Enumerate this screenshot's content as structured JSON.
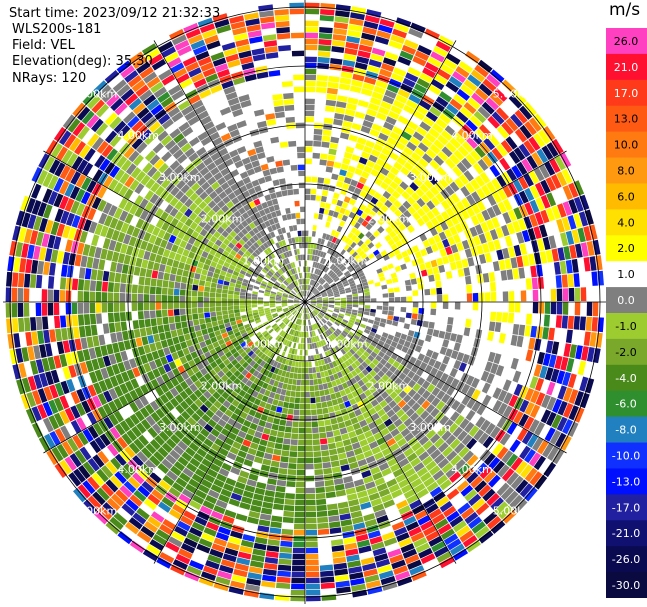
{
  "header": {
    "start_time": "Start time: 2023/09/12 21:32:33",
    "instrument": "WLS200s-181",
    "field": "Field: VEL",
    "elevation": "Elevation(deg): 35.30",
    "nrays": "NRays: 120"
  },
  "colorbar": {
    "unit": "m/s",
    "bins": [
      {
        "label": "26.0",
        "color": "#ff40c0"
      },
      {
        "label": "21.0",
        "color": "#ff1030"
      },
      {
        "label": "17.0",
        "color": "#ff3a1a"
      },
      {
        "label": "13.0",
        "color": "#ff5a14"
      },
      {
        "label": "10.0",
        "color": "#ff7a10"
      },
      {
        "label": "8.0",
        "color": "#ff9a10"
      },
      {
        "label": "6.0",
        "color": "#ffbb00"
      },
      {
        "label": "4.0",
        "color": "#ffe000"
      },
      {
        "label": "2.0",
        "color": "#ffff00"
      },
      {
        "label": "1.0",
        "color": "#ffffff"
      },
      {
        "label": "0.0",
        "color": "#7f7f7f"
      },
      {
        "label": "-1.0",
        "color": "#9ccc30"
      },
      {
        "label": "-2.0",
        "color": "#7aa82a"
      },
      {
        "label": "-4.0",
        "color": "#4a8a1a"
      },
      {
        "label": "-6.0",
        "color": "#2f8f2f"
      },
      {
        "label": "-8.0",
        "color": "#2080c0"
      },
      {
        "label": "-10.0",
        "color": "#1030ff"
      },
      {
        "label": "-13.0",
        "color": "#0010ff"
      },
      {
        "label": "-17.0",
        "color": "#2020a0"
      },
      {
        "label": "-21.0",
        "color": "#101070"
      },
      {
        "label": "-26.0",
        "color": "#0a0a50"
      },
      {
        "label": "-30.0",
        "color": "#0a0a40"
      }
    ]
  },
  "chart_data": {
    "type": "heatmap",
    "projection": "polar-ppi",
    "field": "VEL",
    "nrays": 120,
    "range_rings": [
      "1.00km",
      "2.00km",
      "3.00km",
      "4.00km",
      "5.00km"
    ],
    "clim": [
      -30.0,
      26.0
    ],
    "pattern": "near-ground gray (~0 m/s), positive (yellow) to north-east, negative (green) to south-west, noisy multicolor far range"
  }
}
